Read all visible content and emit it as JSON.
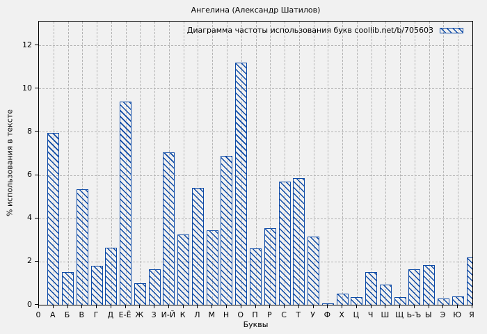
{
  "chart_data": {
    "type": "bar",
    "title": "Ангелина (Александр Шатилов)",
    "legend": "Диаграмма частоты использования букв coollib.net/b/705603",
    "legend_position": "top-right-inside",
    "xlabel": "Буквы",
    "ylabel": "% использования в тексте",
    "categories": [
      "0",
      "А",
      "Б",
      "В",
      "Г",
      "Д",
      "Е-Ё",
      "Ж",
      "З",
      "И-Й",
      "К",
      "Л",
      "М",
      "Н",
      "О",
      "П",
      "Р",
      "С",
      "Т",
      "У",
      "Ф",
      "Х",
      "Ц",
      "Ч",
      "Ш",
      "Щ",
      "Ь-Ъ",
      "Ы",
      "Э",
      "Ю",
      "Я"
    ],
    "values": [
      0,
      7.95,
      1.5,
      5.35,
      1.8,
      2.65,
      9.4,
      1.0,
      1.65,
      7.05,
      3.25,
      5.4,
      3.45,
      6.9,
      11.2,
      2.6,
      3.55,
      5.7,
      5.85,
      3.15,
      0.05,
      0.5,
      0.35,
      1.5,
      0.95,
      0.35,
      1.65,
      1.85,
      0.3,
      0.4,
      2.2
    ],
    "yticks": [
      0,
      2,
      4,
      6,
      8,
      10,
      12
    ],
    "ylim": [
      0,
      13.1
    ],
    "grid": true,
    "bar_color": "#0d4aa6",
    "grid_color": "#b3b3b3",
    "background_color": "#f1f1f1",
    "axis_color": "#000000"
  }
}
